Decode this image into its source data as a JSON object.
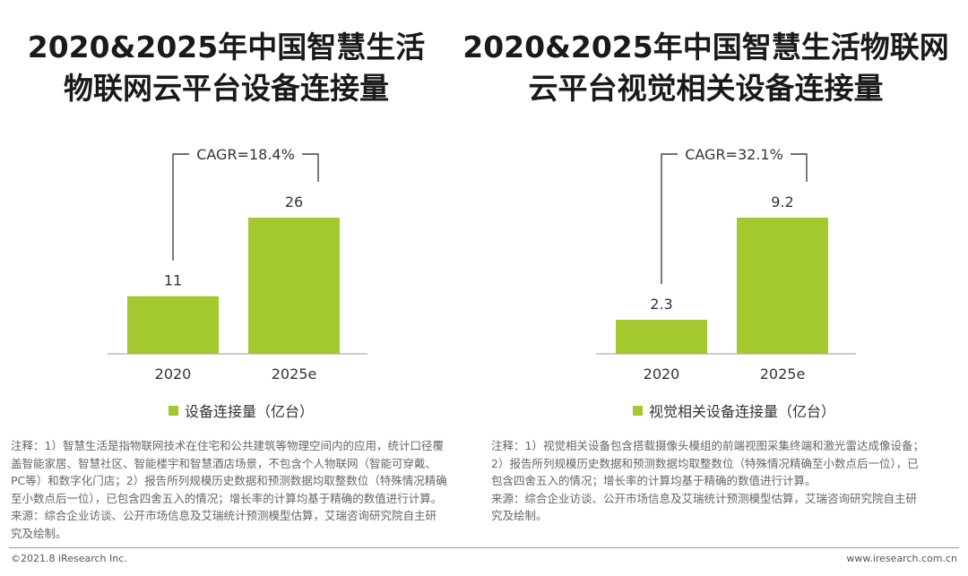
{
  "titles": {
    "left": [
      "2020&2025年中国智慧生活",
      "物联网云平台设备连接量"
    ],
    "right": [
      "2020&2025年中国智慧生活物联网",
      "云平台视觉相关设备连接量"
    ]
  },
  "colors": {
    "bar": "#a3c92e",
    "axis": "#999999",
    "text": "#333333"
  },
  "chart_data": [
    {
      "type": "bar",
      "title": "2020&2025年中国智慧生活物联网云平台设备连接量",
      "categories": [
        "2020",
        "2025e"
      ],
      "series": [
        {
          "name": "设备连接量（亿台）",
          "values": [
            11,
            26
          ]
        }
      ],
      "data_labels": [
        "11",
        "26"
      ],
      "annotation": "CAGR=18.4%",
      "ylim": [
        0,
        26
      ],
      "grid": false,
      "legend_position": "bottom"
    },
    {
      "type": "bar",
      "title": "2020&2025年中国智慧生活物联网云平台视觉相关设备连接量",
      "categories": [
        "2020",
        "2025e"
      ],
      "series": [
        {
          "name": "视觉相关设备连接量（亿台）",
          "values": [
            2.3,
            9.2
          ]
        }
      ],
      "data_labels": [
        "2.3",
        "9.2"
      ],
      "annotation": "CAGR=32.1%",
      "ylim": [
        0,
        9.2
      ],
      "grid": false,
      "legend_position": "bottom"
    }
  ],
  "notes": {
    "left": [
      "注释：1）智慧生活是指物联网技术在住宅和公共建筑等物理空间内的应用，统计口径覆",
      "盖智能家居、智慧社区、智能楼宇和智慧酒店场景，不包含个人物联网（智能可穿戴、",
      "PC等）和数字化门店；2）报告所列规模历史数据和预测数据均取整数位（特殊情况精确",
      "至小数点后一位），已包含四舍五入的情况；增长率的计算均基于精确的数值进行计算。",
      "来源：综合企业访谈、公开市场信息及艾瑞统计预测模型估算，艾瑞咨询研究院自主研",
      "究及绘制。"
    ],
    "right": [
      "注释：1）视觉相关设备包含搭载摄像头模组的前端视图采集终端和激光雷达成像设备；",
      "2）报告所列规模历史数据和预测数据均取整数位（特殊情况精确至小数点后一位），已",
      "包含四舍五入的情况；增长率的计算均基于精确的数值进行计算。",
      "来源：综合企业访谈、公开市场信息及艾瑞统计预测模型估算，艾瑞咨询研究院自主研",
      "究及绘制。"
    ]
  },
  "footer": {
    "left": "©2021.8 iResearch Inc.",
    "right": "www.iresearch.com.cn"
  }
}
